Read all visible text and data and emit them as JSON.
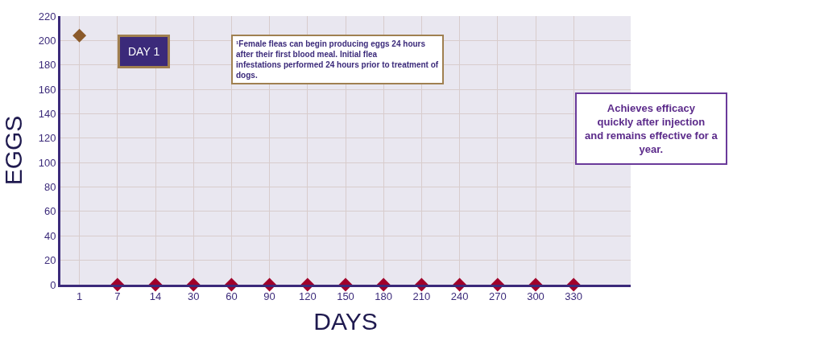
{
  "chart_data": {
    "type": "scatter",
    "categories": [
      "1",
      "7",
      "14",
      "30",
      "60",
      "90",
      "120",
      "150",
      "180",
      "210",
      "240",
      "270",
      "300",
      "330",
      null
    ],
    "values": [
      204,
      0,
      0,
      0,
      0,
      0,
      0,
      0,
      0,
      0,
      0,
      0,
      0,
      0,
      null
    ],
    "colors": [
      "#8b5a2b",
      "#a0002a",
      "#a0002a",
      "#a0002a",
      "#a0002a",
      "#a0002a",
      "#a0002a",
      "#a0002a",
      "#a0002a",
      "#a0002a",
      "#a0002a",
      "#a0002a",
      "#a0002a",
      "#a0002a",
      null
    ],
    "xlabel": "DAYS",
    "ylabel": "EGGS",
    "ylim": [
      0,
      220
    ],
    "yticks": [
      0,
      20,
      40,
      60,
      80,
      100,
      120,
      140,
      160,
      180,
      200,
      220
    ],
    "grid": true,
    "marker": "diamond",
    "annotations": [
      "DAY 1",
      "¹Female fleas can begin producing eggs 24 hours after their first blood meal. Initial flea infestations performed 24 hours prior to treatment of dogs.",
      "Achieves efficacy quickly after injection and remains effective for a year."
    ]
  }
}
